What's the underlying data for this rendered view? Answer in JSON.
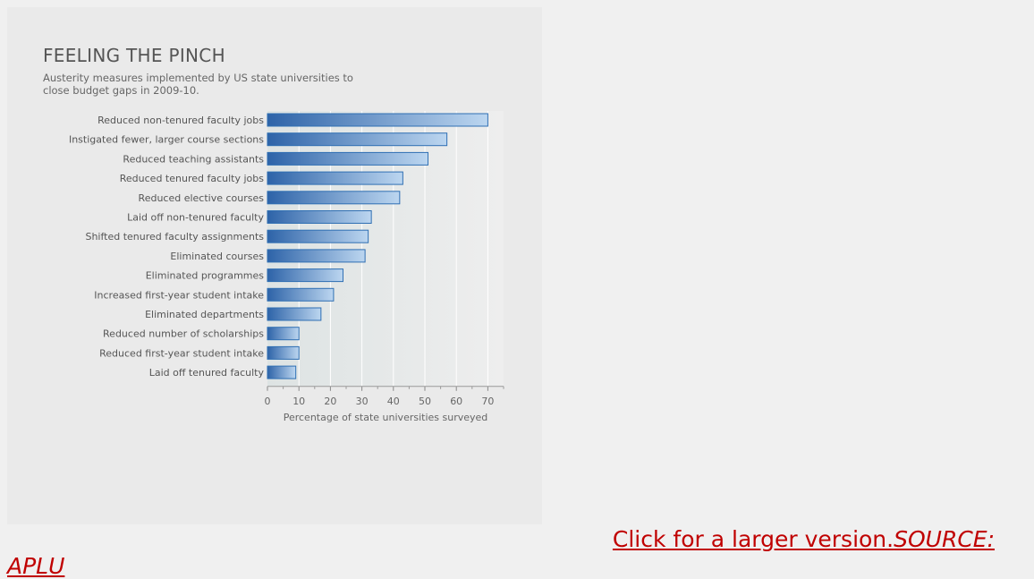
{
  "chart_data": {
    "type": "bar",
    "orientation": "horizontal",
    "title": "FEELING THE PINCH",
    "subtitle": "Austerity measures implemented by US state universities to close budget gaps in 2009-10.",
    "xlabel": "Percentage of state universities surveyed",
    "ylabel": "",
    "xlim": [
      0,
      75
    ],
    "ticks": [
      0,
      10,
      20,
      30,
      40,
      50,
      60,
      70
    ],
    "grid": true,
    "categories": [
      "Reduced non-tenured faculty jobs",
      "Instigated fewer, larger course sections",
      "Reduced teaching assistants",
      "Reduced tenured faculty jobs",
      "Reduced elective courses",
      "Laid off non-tenured faculty",
      "Shifted tenured faculty assignments",
      "Eliminated courses",
      "Eliminated programmes",
      "Increased first-year student intake",
      "Eliminated departments",
      "Reduced number of scholarships",
      "Reduced first-year student intake",
      "Laid off tenured faculty"
    ],
    "values": [
      70,
      57,
      51,
      43,
      42,
      33,
      32,
      31,
      24,
      21,
      17,
      10,
      10,
      9
    ],
    "bar_color": "#2f6fb3"
  },
  "caption": {
    "link_text": "Click for a larger version.",
    "source_text": "SOURCE: APLU",
    "link_color": "#c00000"
  }
}
